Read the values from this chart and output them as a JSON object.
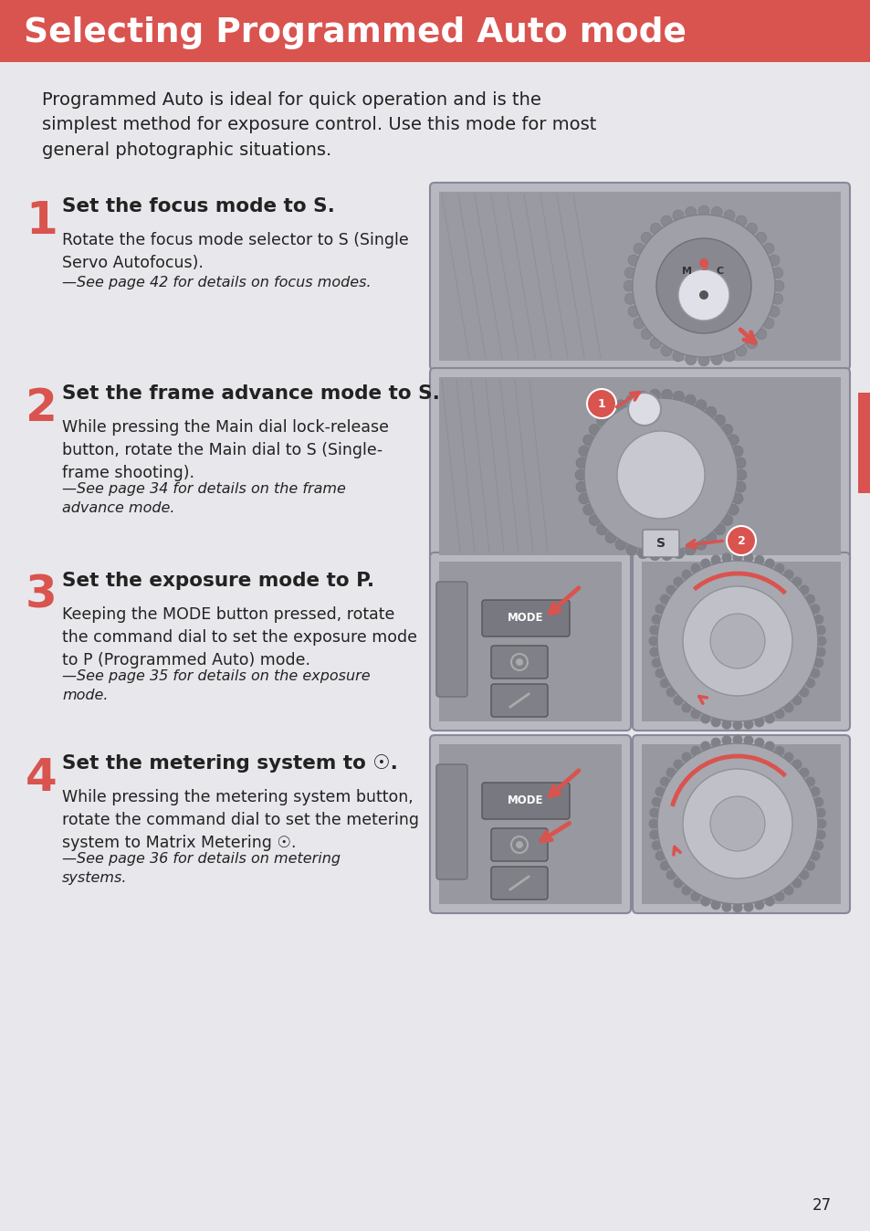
{
  "title": "Selecting Programmed Auto mode",
  "title_bg": "#d9534f",
  "title_color": "#ffffff",
  "page_bg": "#e8e8ec",
  "body_text_color": "#222222",
  "red_color": "#d9534f",
  "intro": "Programmed Auto is ideal for quick operation and is the\nsimplest method for exposure control. Use this mode for most\ngeneral photographic situations.",
  "steps": [
    {
      "num": "1",
      "heading": "Set the focus mode to S.",
      "body": "Rotate the focus mode selector to S (Single\nServo Autofocus).",
      "note": "—See page 42 for details on focus modes."
    },
    {
      "num": "2",
      "heading": "Set the frame advance mode to S.",
      "body": "While pressing the Main dial lock-release\nbutton, rotate the Main dial to S (Single-\nframe shooting).",
      "note": "—See page 34 for details on the frame\nadvance mode."
    },
    {
      "num": "3",
      "heading": "Set the exposure mode to P.",
      "body": "Keeping the MODE button pressed, rotate\nthe command dial to set the exposure mode\nto P (Programmed Auto) mode.",
      "note": "—See page 35 for details on the exposure\nmode."
    },
    {
      "num": "4",
      "heading": "Set the metering system to ☉.",
      "body": "While pressing the metering system button,\nrotate the command dial to set the metering\nsystem to Matrix Metering ☉.",
      "note": "—See page 36 for details on metering\nsystems."
    }
  ],
  "page_number": "27",
  "image_bg": "#b8b8c0",
  "image_border": "#888898",
  "img_dark": "#909098",
  "img_mid": "#a8a8b0",
  "img_light": "#d0d0d8"
}
